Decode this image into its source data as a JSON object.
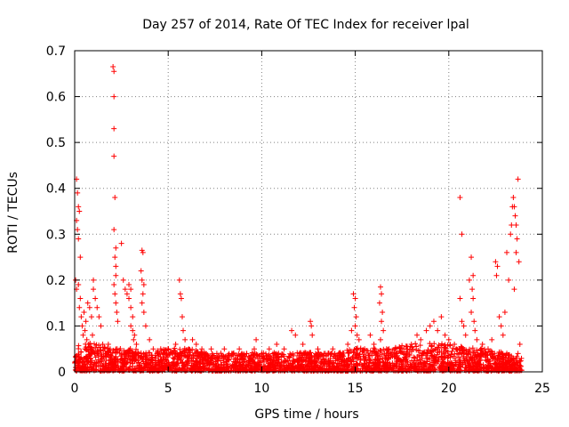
{
  "chart_data": {
    "type": "scatter",
    "title": "Day 257 of 2014, Rate Of TEC Index for receiver lpal",
    "xlabel": "GPS time / hours",
    "ylabel": "ROTI / TECUs",
    "xlim": [
      0,
      25
    ],
    "ylim": [
      0,
      0.7
    ],
    "xticks": [
      0,
      5,
      10,
      15,
      20,
      25
    ],
    "yticks": [
      0,
      0.1,
      0.2,
      0.3,
      0.4,
      0.5,
      0.6,
      0.7
    ],
    "xtick_labels": [
      "0",
      "5",
      "10",
      "15",
      "20",
      "25"
    ],
    "ytick_labels": [
      "0",
      "0.1",
      "0.2",
      "0.3",
      "0.4",
      "0.5",
      "0.6",
      "0.7"
    ],
    "grid": true,
    "marker": "+",
    "series_color": "#ff0000",
    "series": [
      {
        "name": "ROTI",
        "points": [
          [
            0.1,
            0.42
          ],
          [
            0.15,
            0.39
          ],
          [
            0.2,
            0.36
          ],
          [
            0.25,
            0.35
          ],
          [
            0.1,
            0.33
          ],
          [
            0.15,
            0.31
          ],
          [
            0.2,
            0.29
          ],
          [
            0.3,
            0.25
          ],
          [
            0.05,
            0.2
          ],
          [
            0.1,
            0.18
          ],
          [
            0.2,
            0.19
          ],
          [
            0.3,
            0.16
          ],
          [
            0.25,
            0.14
          ],
          [
            0.35,
            0.12
          ],
          [
            0.4,
            0.1
          ],
          [
            0.5,
            0.13
          ],
          [
            0.6,
            0.11
          ],
          [
            0.7,
            0.15
          ],
          [
            0.8,
            0.14
          ],
          [
            0.9,
            0.12
          ],
          [
            1.0,
            0.2
          ],
          [
            1.0,
            0.18
          ],
          [
            1.1,
            0.16
          ],
          [
            1.2,
            0.14
          ],
          [
            1.3,
            0.12
          ],
          [
            1.4,
            0.1
          ],
          [
            0.45,
            0.08
          ],
          [
            0.55,
            0.09
          ],
          [
            0.65,
            0.07
          ],
          [
            0.75,
            0.06
          ],
          [
            0.85,
            0.05
          ],
          [
            0.95,
            0.08
          ],
          [
            1.5,
            0.06
          ],
          [
            1.6,
            0.05
          ],
          [
            1.7,
            0.04
          ],
          [
            1.8,
            0.06
          ],
          [
            1.9,
            0.05
          ],
          [
            2.05,
            0.665
          ],
          [
            2.1,
            0.655
          ],
          [
            2.1,
            0.6
          ],
          [
            2.1,
            0.53
          ],
          [
            2.1,
            0.47
          ],
          [
            2.15,
            0.38
          ],
          [
            2.1,
            0.31
          ],
          [
            2.2,
            0.27
          ],
          [
            2.15,
            0.25
          ],
          [
            2.2,
            0.23
          ],
          [
            2.2,
            0.21
          ],
          [
            2.1,
            0.19
          ],
          [
            2.15,
            0.17
          ],
          [
            2.2,
            0.15
          ],
          [
            2.25,
            0.13
          ],
          [
            2.3,
            0.11
          ],
          [
            2.5,
            0.28
          ],
          [
            2.6,
            0.2
          ],
          [
            2.7,
            0.18
          ],
          [
            2.8,
            0.17
          ],
          [
            2.9,
            0.19
          ],
          [
            3.0,
            0.18
          ],
          [
            2.9,
            0.16
          ],
          [
            3.0,
            0.14
          ],
          [
            3.1,
            0.12
          ],
          [
            3.0,
            0.1
          ],
          [
            3.1,
            0.09
          ],
          [
            3.2,
            0.08
          ],
          [
            3.15,
            0.07
          ],
          [
            3.3,
            0.06
          ],
          [
            3.6,
            0.265
          ],
          [
            3.65,
            0.26
          ],
          [
            3.55,
            0.22
          ],
          [
            3.6,
            0.2
          ],
          [
            3.7,
            0.19
          ],
          [
            3.65,
            0.17
          ],
          [
            3.6,
            0.15
          ],
          [
            3.7,
            0.13
          ],
          [
            3.8,
            0.1
          ],
          [
            4.0,
            0.07
          ],
          [
            4.2,
            0.05
          ],
          [
            4.4,
            0.04
          ],
          [
            4.6,
            0.05
          ],
          [
            4.8,
            0.04
          ],
          [
            5.0,
            0.05
          ],
          [
            5.2,
            0.04
          ],
          [
            5.4,
            0.06
          ],
          [
            5.6,
            0.2
          ],
          [
            5.65,
            0.17
          ],
          [
            5.7,
            0.16
          ],
          [
            5.75,
            0.12
          ],
          [
            5.8,
            0.09
          ],
          [
            5.9,
            0.07
          ],
          [
            6.1,
            0.05
          ],
          [
            6.3,
            0.07
          ],
          [
            6.5,
            0.06
          ],
          [
            6.8,
            0.05
          ],
          [
            7.0,
            0.04
          ],
          [
            7.3,
            0.05
          ],
          [
            7.6,
            0.04
          ],
          [
            8.0,
            0.05
          ],
          [
            8.4,
            0.04
          ],
          [
            8.8,
            0.05
          ],
          [
            9.2,
            0.04
          ],
          [
            9.6,
            0.05
          ],
          [
            9.7,
            0.07
          ],
          [
            10.0,
            0.04
          ],
          [
            10.4,
            0.05
          ],
          [
            10.8,
            0.06
          ],
          [
            11.2,
            0.05
          ],
          [
            11.6,
            0.09
          ],
          [
            11.8,
            0.08
          ],
          [
            12.2,
            0.06
          ],
          [
            12.6,
            0.11
          ],
          [
            12.65,
            0.1
          ],
          [
            12.7,
            0.08
          ],
          [
            13.0,
            0.05
          ],
          [
            13.4,
            0.04
          ],
          [
            13.8,
            0.05
          ],
          [
            14.2,
            0.04
          ],
          [
            14.6,
            0.06
          ],
          [
            14.9,
            0.17
          ],
          [
            15.0,
            0.16
          ],
          [
            14.95,
            0.14
          ],
          [
            15.05,
            0.12
          ],
          [
            15.0,
            0.1
          ],
          [
            15.1,
            0.08
          ],
          [
            14.8,
            0.09
          ],
          [
            15.2,
            0.07
          ],
          [
            15.5,
            0.05
          ],
          [
            15.8,
            0.08
          ],
          [
            16.0,
            0.06
          ],
          [
            16.35,
            0.185
          ],
          [
            16.4,
            0.17
          ],
          [
            16.3,
            0.15
          ],
          [
            16.45,
            0.13
          ],
          [
            16.4,
            0.11
          ],
          [
            16.5,
            0.09
          ],
          [
            16.35,
            0.07
          ],
          [
            16.8,
            0.05
          ],
          [
            17.2,
            0.04
          ],
          [
            17.6,
            0.05
          ],
          [
            18.0,
            0.06
          ],
          [
            18.3,
            0.08
          ],
          [
            18.5,
            0.07
          ],
          [
            18.8,
            0.09
          ],
          [
            19.0,
            0.1
          ],
          [
            19.2,
            0.11
          ],
          [
            19.4,
            0.09
          ],
          [
            19.6,
            0.12
          ],
          [
            19.8,
            0.08
          ],
          [
            20.0,
            0.07
          ],
          [
            20.3,
            0.06
          ],
          [
            20.6,
            0.38
          ],
          [
            20.7,
            0.3
          ],
          [
            20.6,
            0.16
          ],
          [
            20.7,
            0.11
          ],
          [
            20.8,
            0.1
          ],
          [
            20.9,
            0.08
          ],
          [
            21.1,
            0.2
          ],
          [
            21.2,
            0.25
          ],
          [
            21.3,
            0.21
          ],
          [
            21.25,
            0.18
          ],
          [
            21.3,
            0.16
          ],
          [
            21.2,
            0.13
          ],
          [
            21.35,
            0.11
          ],
          [
            21.4,
            0.09
          ],
          [
            21.5,
            0.07
          ],
          [
            21.8,
            0.06
          ],
          [
            22.1,
            0.05
          ],
          [
            22.3,
            0.07
          ],
          [
            22.5,
            0.24
          ],
          [
            22.6,
            0.23
          ],
          [
            22.55,
            0.21
          ],
          [
            22.7,
            0.12
          ],
          [
            22.8,
            0.1
          ],
          [
            22.9,
            0.08
          ],
          [
            23.0,
            0.13
          ],
          [
            23.1,
            0.26
          ],
          [
            23.2,
            0.2
          ],
          [
            23.3,
            0.3
          ],
          [
            23.35,
            0.32
          ],
          [
            23.4,
            0.36
          ],
          [
            23.45,
            0.38
          ],
          [
            23.5,
            0.36
          ],
          [
            23.55,
            0.34
          ],
          [
            23.6,
            0.32
          ],
          [
            23.65,
            0.29
          ],
          [
            23.7,
            0.42
          ],
          [
            23.75,
            0.24
          ],
          [
            23.5,
            0.18
          ],
          [
            23.6,
            0.26
          ],
          [
            23.8,
            0.06
          ],
          [
            23.7,
            0.04
          ],
          [
            23.6,
            0.02
          ]
        ]
      }
    ],
    "dense_band": {
      "description": "dense baseline noise band",
      "x_range": [
        0,
        23.9
      ],
      "y_max_profile": [
        [
          0,
          0.06
        ],
        [
          1,
          0.06
        ],
        [
          2,
          0.05
        ],
        [
          3,
          0.05
        ],
        [
          4,
          0.04
        ],
        [
          5,
          0.05
        ],
        [
          6,
          0.05
        ],
        [
          7,
          0.04
        ],
        [
          8,
          0.04
        ],
        [
          9,
          0.04
        ],
        [
          10,
          0.04
        ],
        [
          11,
          0.04
        ],
        [
          12,
          0.04
        ],
        [
          13,
          0.04
        ],
        [
          14,
          0.04
        ],
        [
          15,
          0.05
        ],
        [
          16,
          0.05
        ],
        [
          17,
          0.05
        ],
        [
          18,
          0.06
        ],
        [
          19,
          0.06
        ],
        [
          20,
          0.06
        ],
        [
          21,
          0.05
        ],
        [
          22,
          0.05
        ],
        [
          23,
          0.04
        ],
        [
          23.9,
          0.03
        ]
      ]
    }
  }
}
